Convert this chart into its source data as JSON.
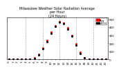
{
  "title": "Milwaukee Weather Solar Radiation Average\nper Hour\n(24 Hours)",
  "title_fontsize": 3.5,
  "hours": [
    0,
    1,
    2,
    3,
    4,
    5,
    6,
    7,
    8,
    9,
    10,
    11,
    12,
    13,
    14,
    15,
    16,
    17,
    18,
    19,
    20,
    21,
    22,
    23
  ],
  "solar_red": [
    0,
    0,
    0,
    0,
    0,
    2,
    18,
    65,
    145,
    240,
    340,
    420,
    470,
    455,
    390,
    300,
    190,
    85,
    20,
    2,
    0,
    0,
    0,
    0
  ],
  "solar_black": [
    0,
    0,
    0,
    0,
    0,
    1,
    10,
    55,
    130,
    220,
    320,
    410,
    460,
    445,
    375,
    285,
    175,
    75,
    15,
    1,
    0,
    0,
    0,
    0
  ],
  "red_color": "#ff0000",
  "black_color": "#000000",
  "bg_color": "#ffffff",
  "grid_color": "#999999",
  "ylim": [
    0,
    520
  ],
  "yticks": [
    0,
    100,
    200,
    300,
    400,
    500
  ],
  "ytick_labels": [
    "0",
    "1h",
    "2h",
    "3h",
    "4h",
    "5h"
  ],
  "ylabel_fontsize": 3.0,
  "xlabel_fontsize": 2.8,
  "marker_size": 1.2,
  "legend_label_red": "Avg",
  "legend_label_black": "2014",
  "grid_hours": [
    4,
    8,
    12,
    16,
    20
  ]
}
